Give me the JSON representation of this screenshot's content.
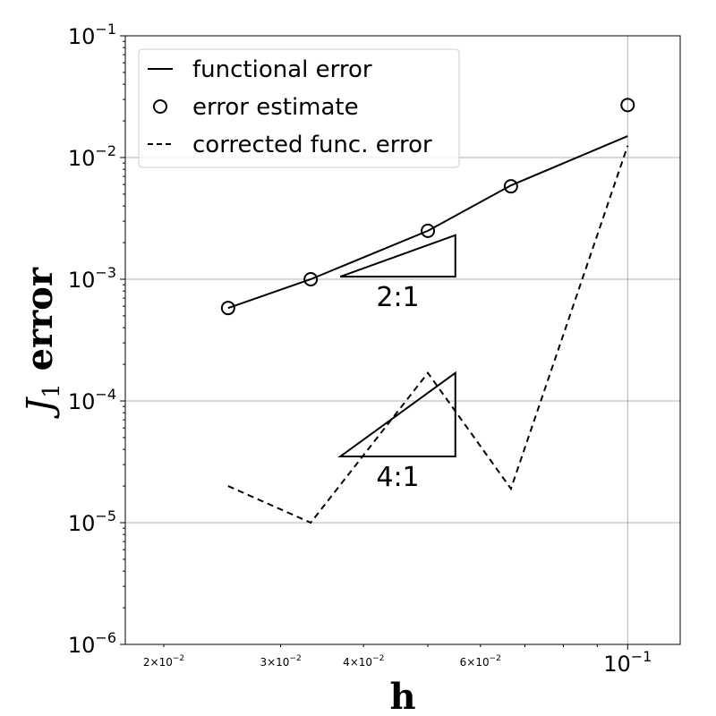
{
  "chart_data": {
    "type": "line",
    "xscale": "log",
    "yscale": "log",
    "xlim": [
      0.0175,
      0.12
    ],
    "ylim": [
      1e-06,
      0.1
    ],
    "grid": true,
    "xlabel": "h",
    "ylabel": {
      "main": "J",
      "subscript": "1",
      "suffix": " error"
    },
    "x_ticks": [
      {
        "value": 0.1,
        "mantissa": "",
        "base": "10",
        "exp": "−1",
        "kind": "major"
      },
      {
        "value": 0.02,
        "mantissa": "2×",
        "base": "10",
        "exp": "−2",
        "kind": "minor"
      },
      {
        "value": 0.03,
        "mantissa": "3×",
        "base": "10",
        "exp": "−2",
        "kind": "minor"
      },
      {
        "value": 0.04,
        "mantissa": "4×",
        "base": "10",
        "exp": "−2",
        "kind": "minor"
      },
      {
        "value": 0.06,
        "mantissa": "6×",
        "base": "10",
        "exp": "−2",
        "kind": "minor"
      }
    ],
    "y_ticks": [
      {
        "value": 0.1,
        "base": "10",
        "exp": "−1"
      },
      {
        "value": 0.01,
        "base": "10",
        "exp": "−2"
      },
      {
        "value": 0.001,
        "base": "10",
        "exp": "−3"
      },
      {
        "value": 0.0001,
        "base": "10",
        "exp": "−4"
      },
      {
        "value": 1e-05,
        "base": "10",
        "exp": "−5"
      },
      {
        "value": 1e-06,
        "base": "10",
        "exp": "−6"
      }
    ],
    "series": [
      {
        "name": "functional error",
        "style": "solid",
        "x": [
          0.025,
          0.0333,
          0.05,
          0.0667,
          0.1
        ],
        "y": [
          0.00058,
          0.001,
          0.0025,
          0.0059,
          0.015
        ]
      },
      {
        "name": "error estimate",
        "style": "circle",
        "x": [
          0.025,
          0.0333,
          0.05,
          0.0667,
          0.1
        ],
        "y": [
          0.00058,
          0.001,
          0.0025,
          0.0058,
          0.027
        ]
      },
      {
        "name": "corrected func. error",
        "style": "dashed",
        "x": [
          0.025,
          0.0333,
          0.05,
          0.0667,
          0.1
        ],
        "y": [
          2e-05,
          1e-05,
          0.00017,
          1.9e-05,
          0.0125
        ]
      }
    ],
    "triangles": [
      {
        "label": "2:1",
        "x0": 0.0369,
        "x1": 0.055,
        "y0": 0.00105,
        "y1": 0.0023
      },
      {
        "label": "4:1",
        "x0": 0.0369,
        "x1": 0.055,
        "y0": 3.5e-05,
        "y1": 0.00017
      }
    ],
    "legend_position": "upper-left",
    "colors": {
      "line": "#000000",
      "grid": "#b0b0b0",
      "background": "#ffffff"
    }
  }
}
